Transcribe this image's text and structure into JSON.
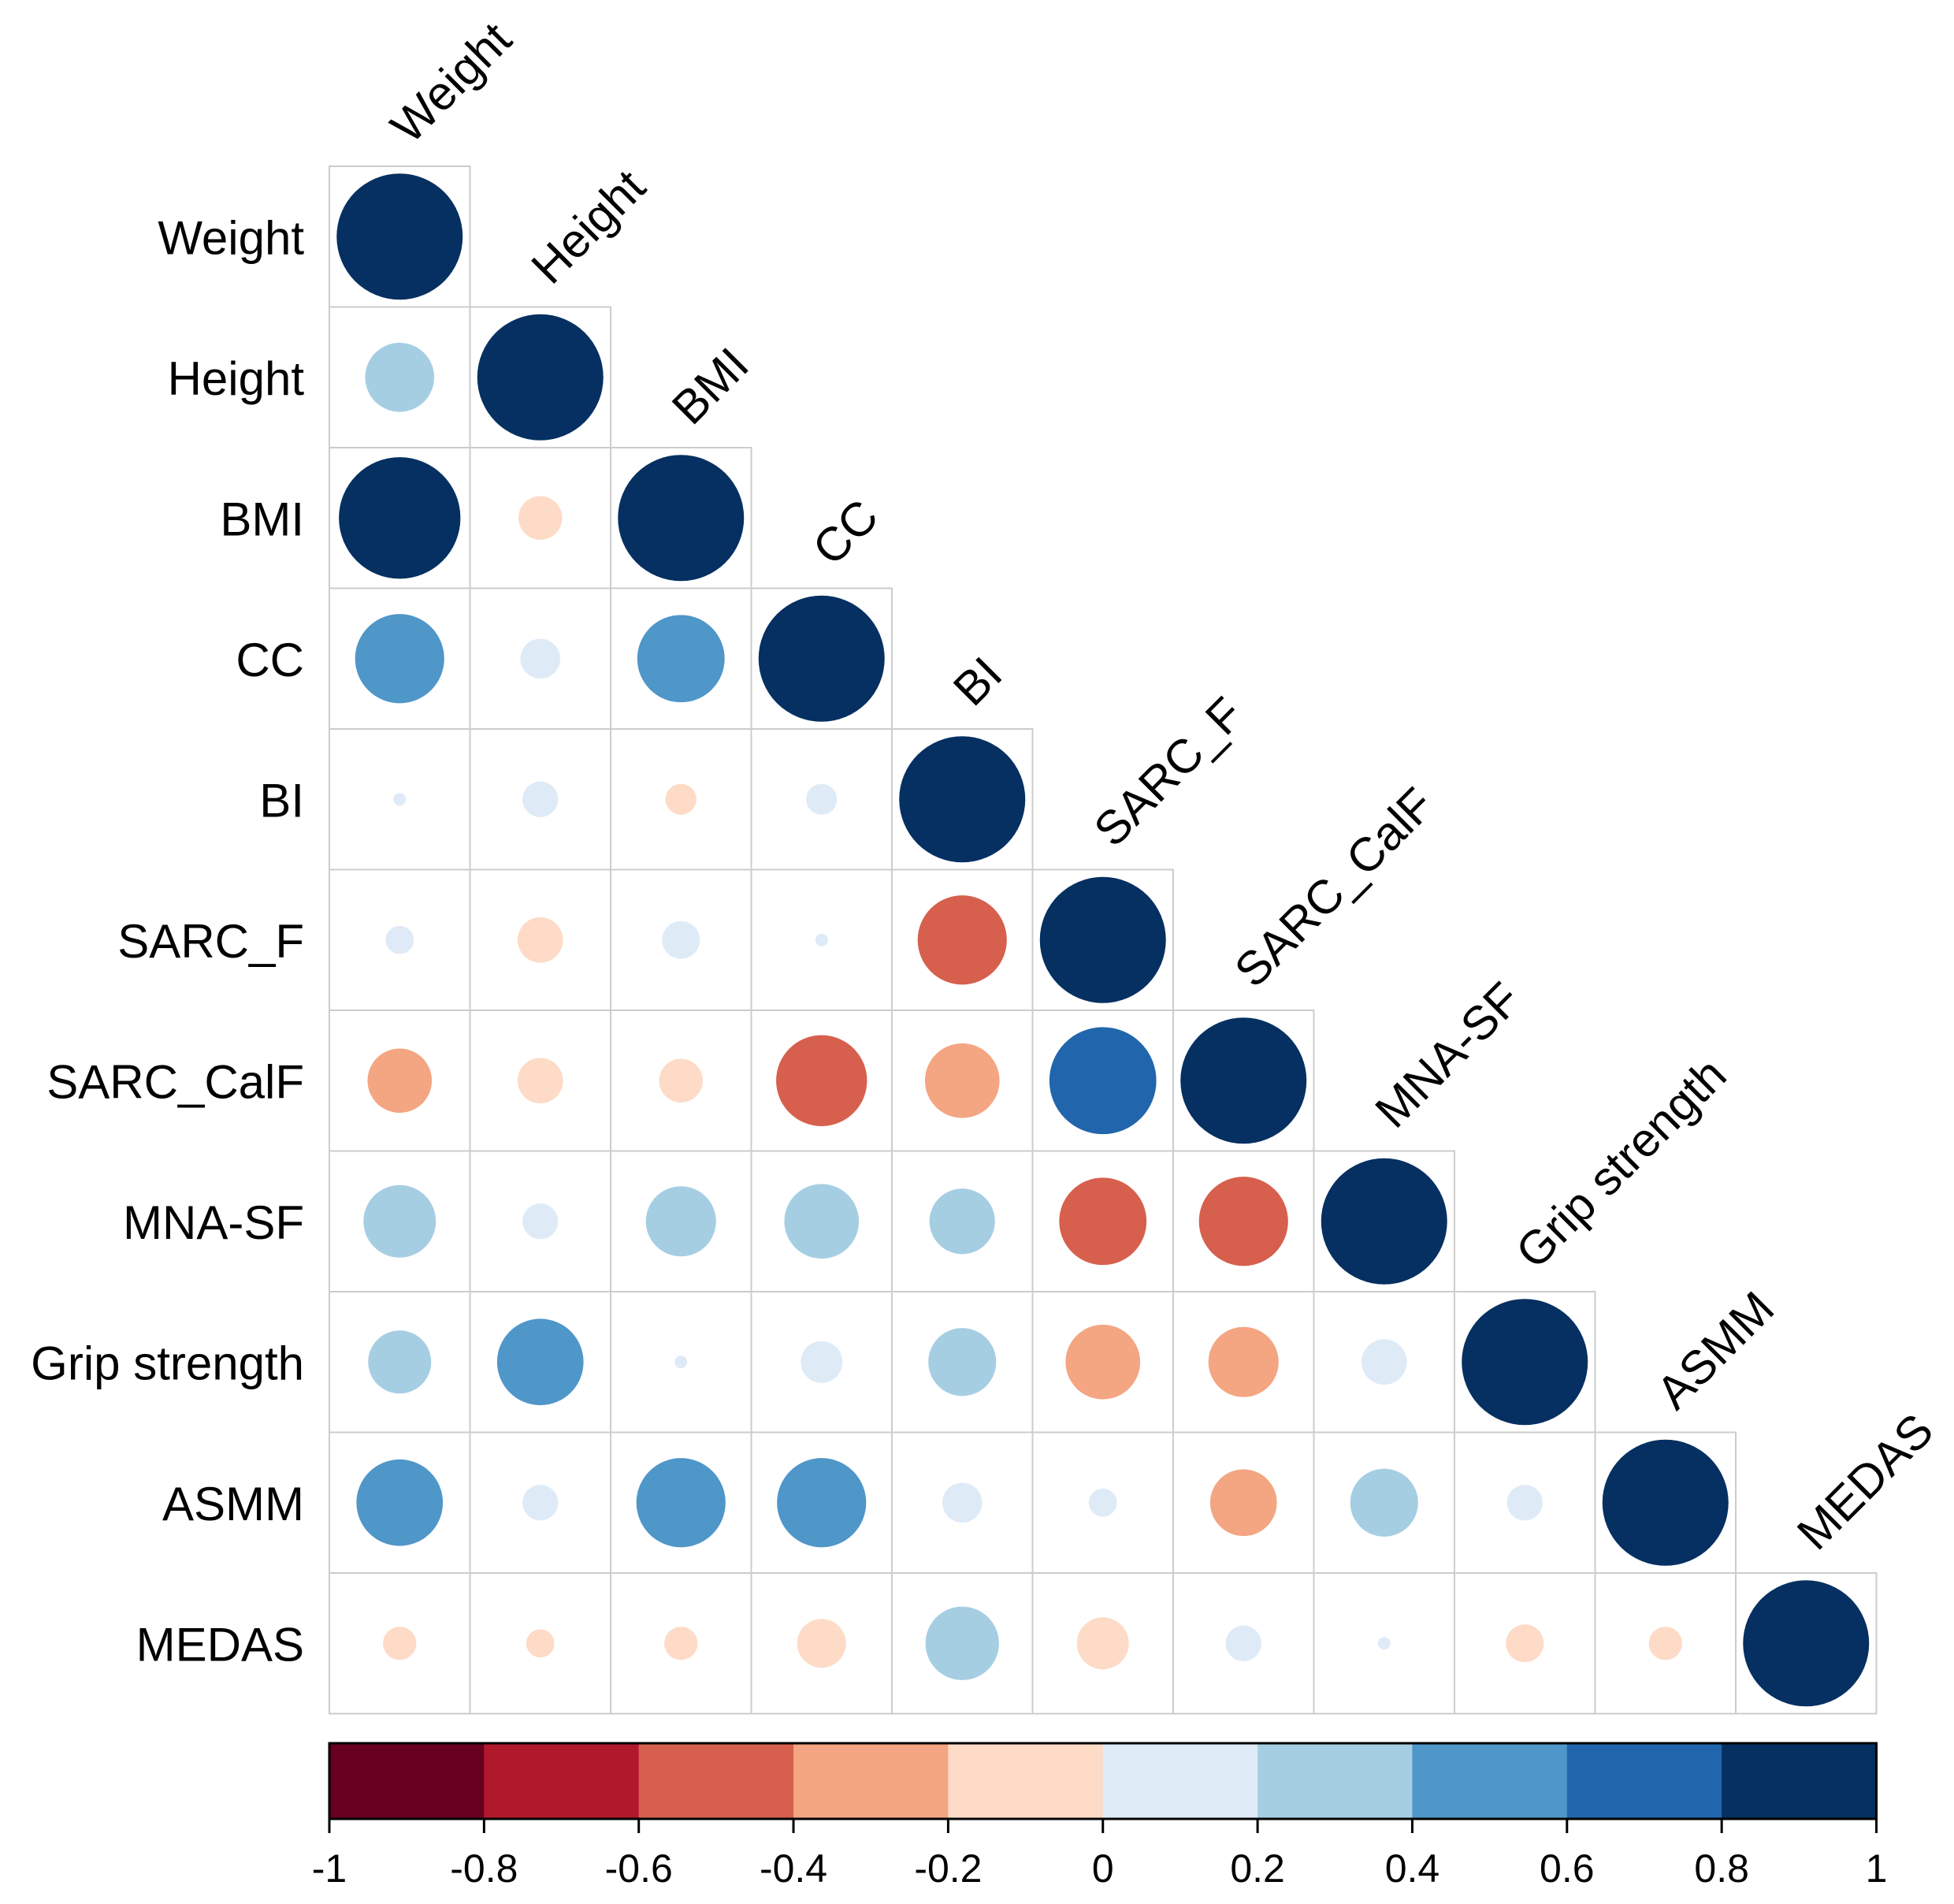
{
  "chart_data": {
    "type": "heatmap",
    "subtype": "correlation-circle-lower-triangle",
    "title": "",
    "variables": [
      "Weight",
      "Height",
      "BMI",
      "CC",
      "BI",
      "SARC_F",
      "SARC_CalF",
      "MNA-SF",
      "Grip strength",
      "ASMM",
      "MEDAS"
    ],
    "matrix": [
      [
        1.0
      ],
      [
        0.3,
        1.0
      ],
      [
        0.93,
        -0.12,
        1.0
      ],
      [
        0.5,
        0.1,
        0.48,
        1.0
      ],
      [
        0.01,
        0.08,
        -0.06,
        0.06,
        1.0
      ],
      [
        0.05,
        -0.13,
        0.09,
        0.01,
        -0.5,
        1.0
      ],
      [
        -0.26,
        -0.13,
        -0.12,
        -0.52,
        -0.35,
        0.72,
        1.0
      ],
      [
        0.33,
        0.08,
        0.31,
        0.35,
        0.27,
        -0.48,
        -0.5,
        1.0
      ],
      [
        0.25,
        0.47,
        0.01,
        0.11,
        0.29,
        -0.35,
        -0.31,
        0.13,
        1.0
      ],
      [
        0.47,
        0.08,
        0.5,
        0.5,
        0.1,
        0.05,
        -0.28,
        0.29,
        0.08,
        1.0
      ],
      [
        -0.07,
        -0.05,
        -0.07,
        -0.15,
        0.34,
        -0.17,
        0.08,
        0.01,
        -0.09,
        -0.07,
        1.0
      ]
    ],
    "colorbar": {
      "ticks": [
        "-1",
        "-0.8",
        "-0.6",
        "-0.4",
        "-0.2",
        "0",
        "0.2",
        "0.4",
        "0.6",
        "0.8",
        "1"
      ],
      "range": [
        -1,
        1
      ],
      "colors": [
        "#67001F",
        "#B2182B",
        "#D6604D",
        "#F4A582",
        "#FDDBC7",
        "#DEEBF7",
        "#A6CEE3",
        "#4F96C9",
        "#2166AC",
        "#053061"
      ]
    },
    "legend": "bottom"
  }
}
